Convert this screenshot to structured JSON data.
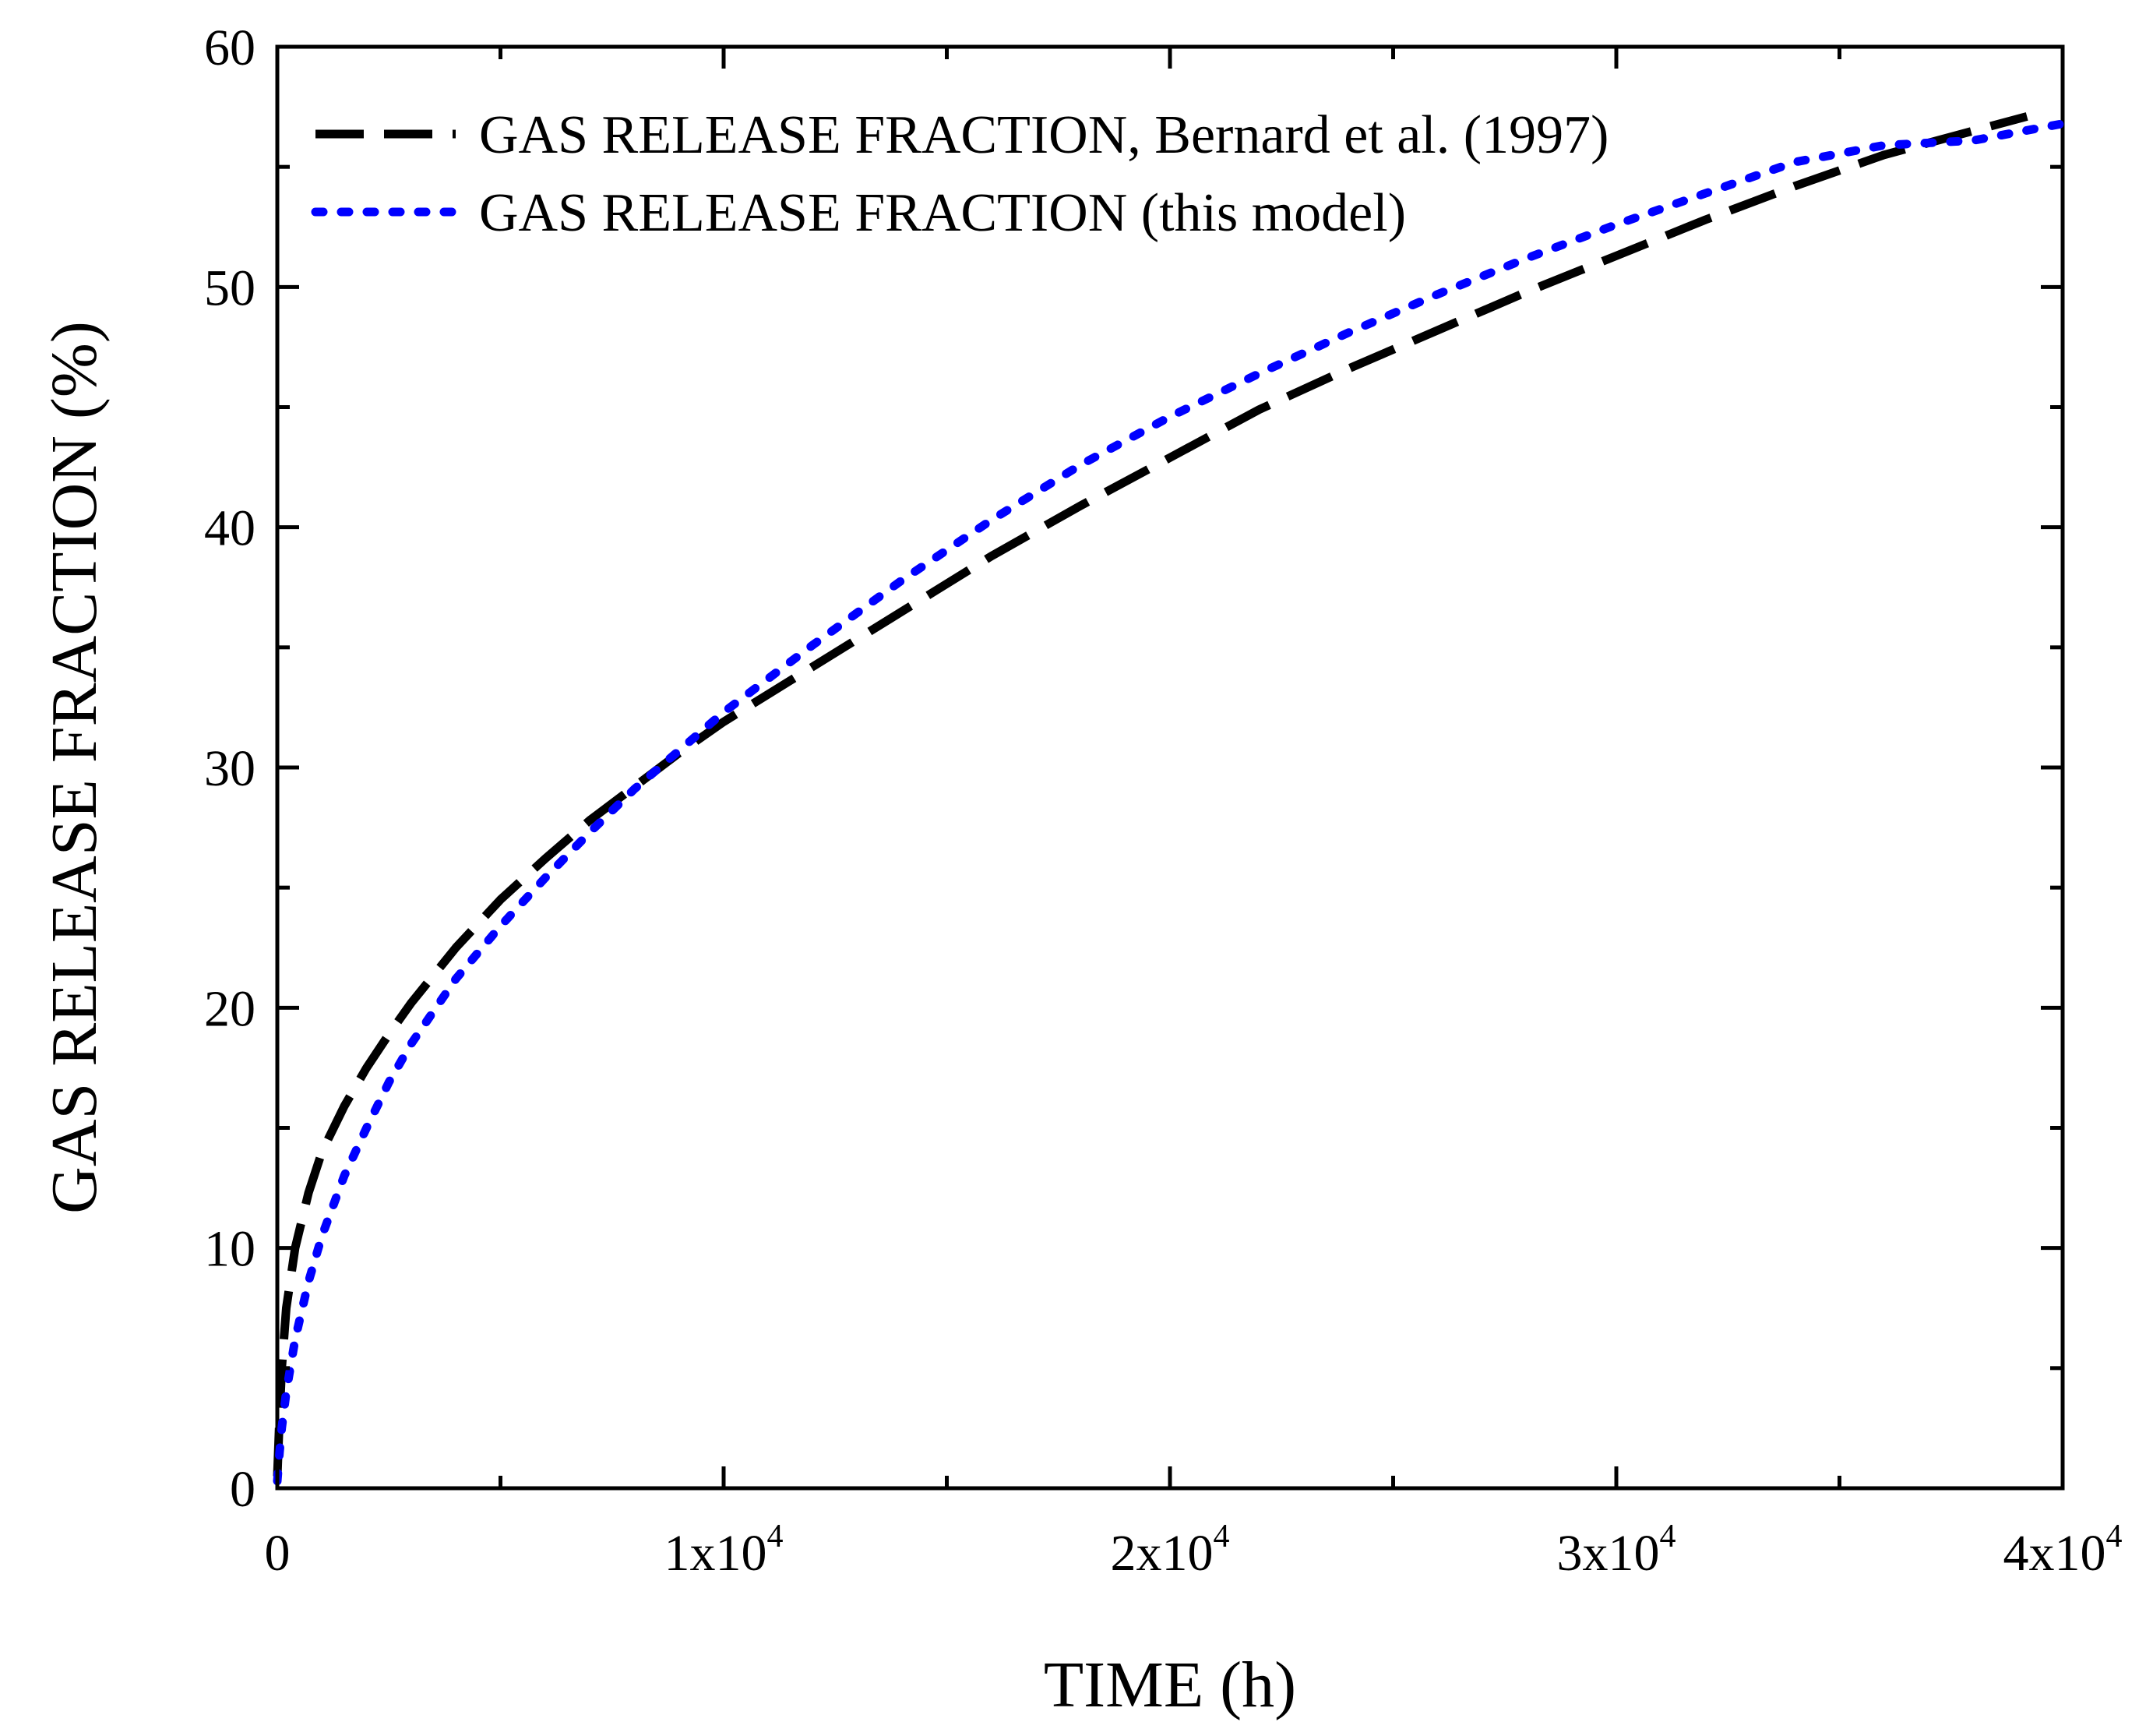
{
  "chart_data": {
    "type": "line",
    "xlabel": "TIME (h)",
    "ylabel": "GAS RELEASE FRACTION (%)",
    "xlim": [
      0,
      40000
    ],
    "ylim": [
      0,
      60
    ],
    "x_ticks": [
      {
        "value": 0,
        "label": "0",
        "exp": ""
      },
      {
        "value": 10000,
        "label": "1x10",
        "exp": "4"
      },
      {
        "value": 20000,
        "label": "2x10",
        "exp": "4"
      },
      {
        "value": 30000,
        "label": "3x10",
        "exp": "4"
      },
      {
        "value": 40000,
        "label": "4x10",
        "exp": "4"
      }
    ],
    "y_ticks": [
      0,
      10,
      20,
      30,
      40,
      50,
      60
    ],
    "x_minor_ticks": [
      5000,
      15000,
      25000,
      35000
    ],
    "y_minor_ticks": [
      5,
      15,
      25,
      35,
      45,
      55
    ],
    "grid": false,
    "legend_position": "top-left",
    "series": [
      {
        "name": "GAS RELEASE FRACTION, Bernard et al. (1997)",
        "color": "#000000",
        "style": "dashed",
        "x": [
          0,
          50,
          100,
          200,
          400,
          700,
          1000,
          1500,
          2000,
          2500,
          3000,
          4000,
          5000,
          6000,
          7000,
          8000,
          9000,
          10000,
          12000,
          14000,
          16000,
          18000,
          20000,
          22000,
          24000,
          26000,
          28000,
          30000,
          32000,
          34000,
          36000,
          38000,
          39200
        ],
        "y": [
          0.5,
          3.0,
          5.0,
          7.5,
          10.0,
          12.3,
          14.0,
          15.9,
          17.5,
          18.9,
          20.2,
          22.5,
          24.5,
          26.2,
          27.8,
          29.2,
          30.6,
          31.9,
          34.2,
          36.5,
          38.8,
          40.9,
          42.9,
          44.9,
          46.6,
          48.2,
          49.8,
          51.3,
          52.8,
          54.2,
          55.5,
          56.5,
          57.1
        ]
      },
      {
        "name": "GAS RELEASE FRACTION (this model)",
        "color": "#0000ff",
        "style": "dotted",
        "x": [
          0,
          50,
          100,
          200,
          400,
          700,
          1000,
          1500,
          2000,
          2500,
          3000,
          4000,
          5000,
          6000,
          7000,
          8000,
          9000,
          10000,
          12000,
          14000,
          16000,
          18000,
          20000,
          22000,
          24000,
          26000,
          28000,
          30000,
          32000,
          34000,
          36000,
          38000,
          40000
        ],
        "y": [
          0.3,
          1.5,
          2.5,
          4.0,
          6.2,
          8.6,
          10.5,
          13.0,
          15.0,
          16.9,
          18.5,
          21.2,
          23.4,
          25.4,
          27.3,
          29.1,
          30.7,
          32.3,
          35.1,
          37.8,
          40.3,
          42.6,
          44.6,
          46.4,
          48.1,
          49.7,
          51.2,
          52.6,
          53.9,
          55.2,
          55.9,
          56.1,
          56.8
        ]
      }
    ]
  }
}
